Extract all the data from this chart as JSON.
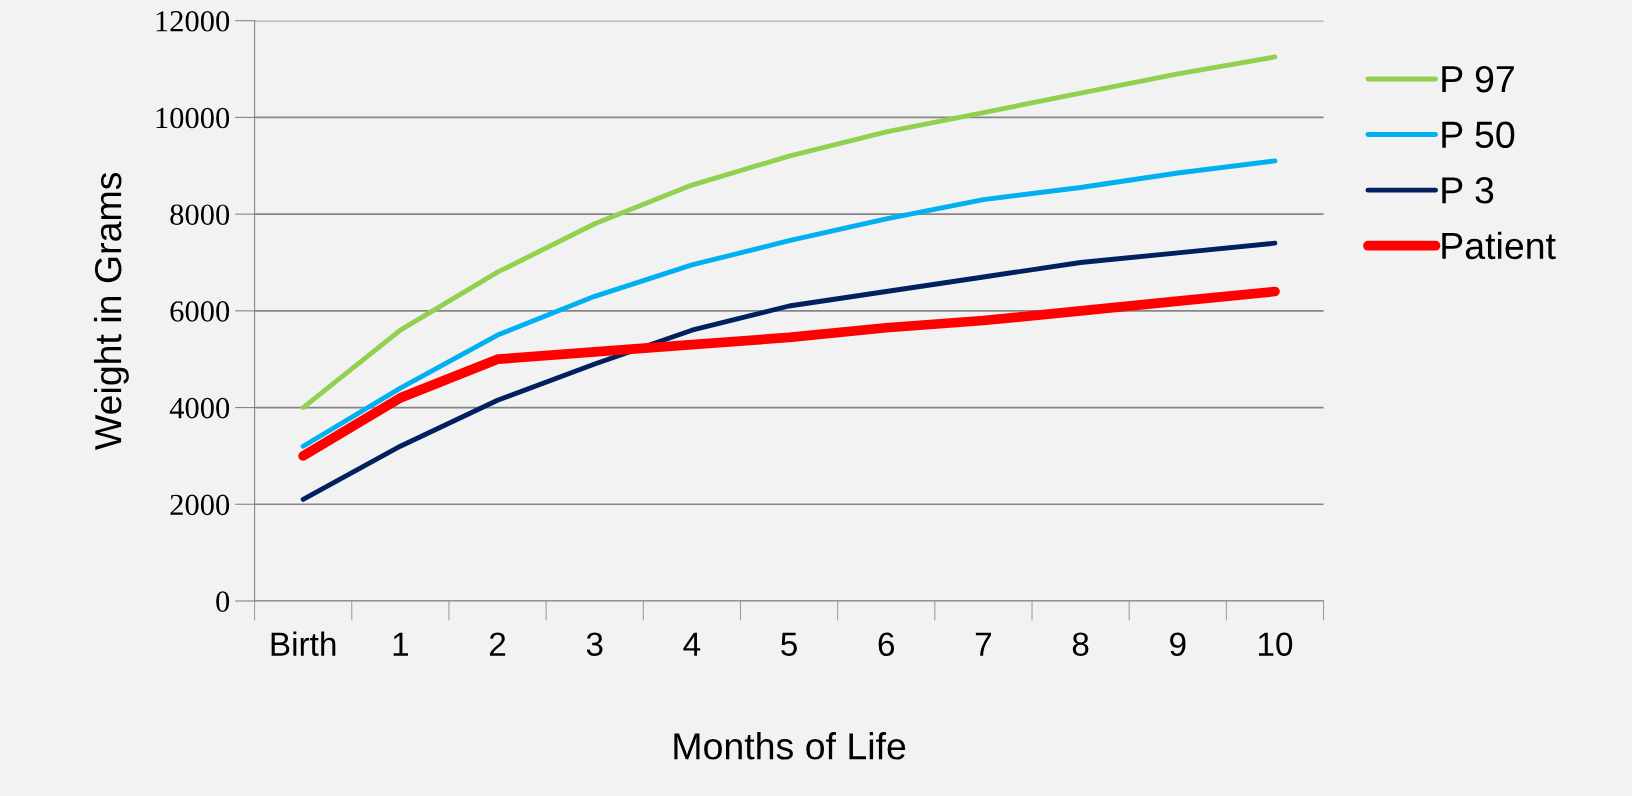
{
  "chart_data": {
    "type": "line",
    "xlabel": "Months of Life",
    "ylabel": "Weight in Grams",
    "categories": [
      "Birth",
      "1",
      "2",
      "3",
      "4",
      "5",
      "6",
      "7",
      "8",
      "9",
      "10"
    ],
    "series": [
      {
        "name": "P 97",
        "color": "#92d050",
        "values": [
          4000,
          5600,
          6800,
          7800,
          8600,
          9200,
          9700,
          10100,
          10500,
          10900,
          11250
        ]
      },
      {
        "name": "P 50",
        "color": "#00b0f0",
        "values": [
          3200,
          4400,
          5500,
          6300,
          6950,
          7450,
          7900,
          8300,
          8550,
          8850,
          9100
        ]
      },
      {
        "name": "P 3",
        "color": "#002060",
        "values": [
          2100,
          3200,
          4150,
          4900,
          5600,
          6100,
          6400,
          6700,
          7000,
          7200,
          7400
        ]
      },
      {
        "name": "Patient",
        "color": "#ff0000",
        "values": [
          3000,
          4200,
          5000,
          5150,
          5300,
          5450,
          5650,
          5800,
          6000,
          6200,
          6400
        ]
      }
    ],
    "ylim": [
      0,
      12000
    ],
    "yticks": [
      0,
      2000,
      4000,
      6000,
      8000,
      10000,
      12000
    ],
    "grid": "y",
    "legend": "right",
    "marker": "none",
    "line_style": "solid"
  }
}
